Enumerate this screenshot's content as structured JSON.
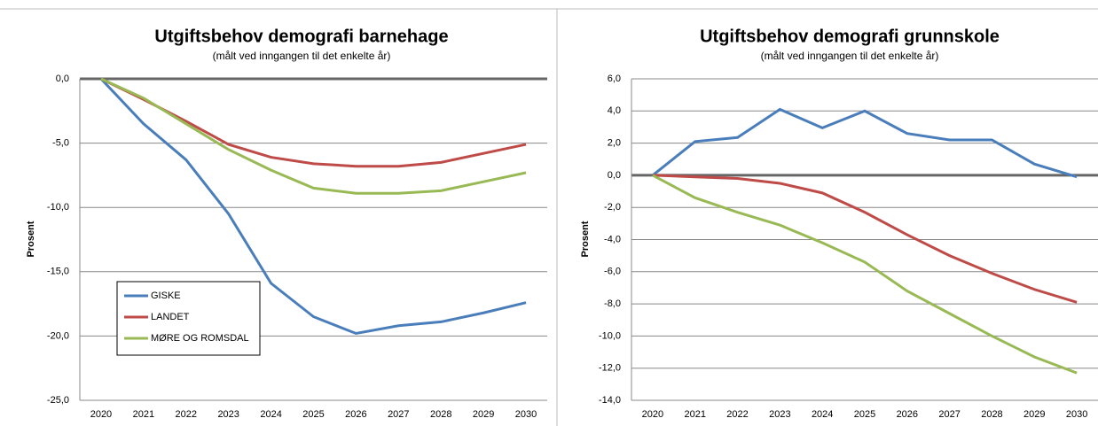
{
  "chart_data": [
    {
      "type": "line",
      "title": "Utgiftsbehov demografi barnehage",
      "subtitle": "(målt ved inngangen til det enkelte år)",
      "y_label": "Prosent",
      "categories": [
        "2020",
        "2021",
        "2022",
        "2023",
        "2024",
        "2025",
        "2026",
        "2027",
        "2028",
        "2029",
        "2030"
      ],
      "series": [
        {
          "name": "GISKE",
          "color": "#4a7ebb",
          "values": [
            0,
            -3.5,
            -6.3,
            -10.5,
            -15.9,
            -18.5,
            -19.8,
            -19.2,
            -18.9,
            -18.2,
            -17.4
          ]
        },
        {
          "name": "LANDET",
          "color": "#be4b48",
          "values": [
            0,
            -1.6,
            -3.3,
            -5.1,
            -6.1,
            -6.6,
            -6.8,
            -6.8,
            -6.5,
            -5.8,
            -5.1
          ]
        },
        {
          "name": "MØRE OG ROMSDAL",
          "color": "#98b954",
          "values": [
            0,
            -1.5,
            -3.5,
            -5.5,
            -7.1,
            -8.5,
            -8.9,
            -8.9,
            -8.7,
            -8.0,
            -7.3
          ]
        }
      ],
      "ylim": [
        -25,
        0
      ],
      "yticks": [
        {
          "value": 0,
          "label": "0,0"
        },
        {
          "value": -5,
          "label": "-5,0"
        },
        {
          "value": -10,
          "label": "-10,0"
        },
        {
          "value": -15,
          "label": "-15,0"
        },
        {
          "value": -20,
          "label": "-20,0"
        },
        {
          "value": -25,
          "label": "-25,0"
        }
      ],
      "grid": true,
      "legend": "lower-left"
    },
    {
      "type": "line",
      "title": "Utgiftsbehov demografi grunnskole",
      "subtitle": "(målt ved inngangen til det enkelte år)",
      "y_label": "Prosent",
      "categories": [
        "2020",
        "2021",
        "2022",
        "2023",
        "2024",
        "2025",
        "2026",
        "2027",
        "2028",
        "2029",
        "2030"
      ],
      "series": [
        {
          "color": "#4a7ebb",
          "values": [
            0,
            2.1,
            2.35,
            4.1,
            2.95,
            4.0,
            2.6,
            2.2,
            2.2,
            0.7,
            -0.1
          ]
        },
        {
          "color": "#be4b48",
          "values": [
            0,
            -0.1,
            -0.2,
            -0.5,
            -1.1,
            -2.3,
            -3.7,
            -5.0,
            -6.1,
            -7.1,
            -7.9
          ]
        },
        {
          "color": "#98b954",
          "values": [
            0,
            -1.4,
            -2.3,
            -3.1,
            -4.2,
            -5.4,
            -7.2,
            -8.6,
            -10.0,
            -11.3,
            -12.3
          ]
        }
      ],
      "ylim": [
        -14,
        6
      ],
      "yticks": [
        {
          "value": 6,
          "label": "6,0"
        },
        {
          "value": 4,
          "label": "4,0"
        },
        {
          "value": 2,
          "label": "2,0"
        },
        {
          "value": 0,
          "label": "0,0"
        },
        {
          "value": -2,
          "label": "-2,0"
        },
        {
          "value": -4,
          "label": "-4,0"
        },
        {
          "value": -6,
          "label": "-6,0"
        },
        {
          "value": -8,
          "label": "-8,0"
        },
        {
          "value": -10,
          "label": "-10,0"
        },
        {
          "value": -12,
          "label": "-12,0"
        },
        {
          "value": -14,
          "label": "-14,0"
        }
      ],
      "grid": true
    }
  ]
}
